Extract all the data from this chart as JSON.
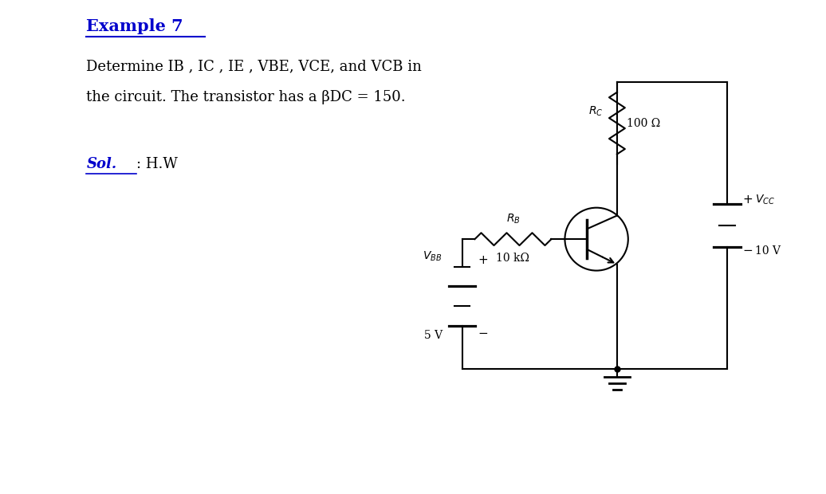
{
  "title": "Example 7",
  "title_color": "#0000CC",
  "body_text_line1": "Determine IB , IC , IE , VBE, VCE, and VCB in",
  "body_text_line2": "the circuit. The transistor has a βDC = 150.",
  "sol_label": "Sol.",
  "sol_color": "#0000CC",
  "sol_text": ": H.W",
  "bg_color": "#ffffff",
  "RB_label": "$R_B$",
  "RB_value": "10 kΩ",
  "RC_label": "$R_C$",
  "RC_value": "100 Ω",
  "VBB_label": "$V_{BB}$",
  "VBB_value": "5 V",
  "VCC_label": "$V_{CC}$",
  "VCC_value": "10 V",
  "lw": 1.5
}
